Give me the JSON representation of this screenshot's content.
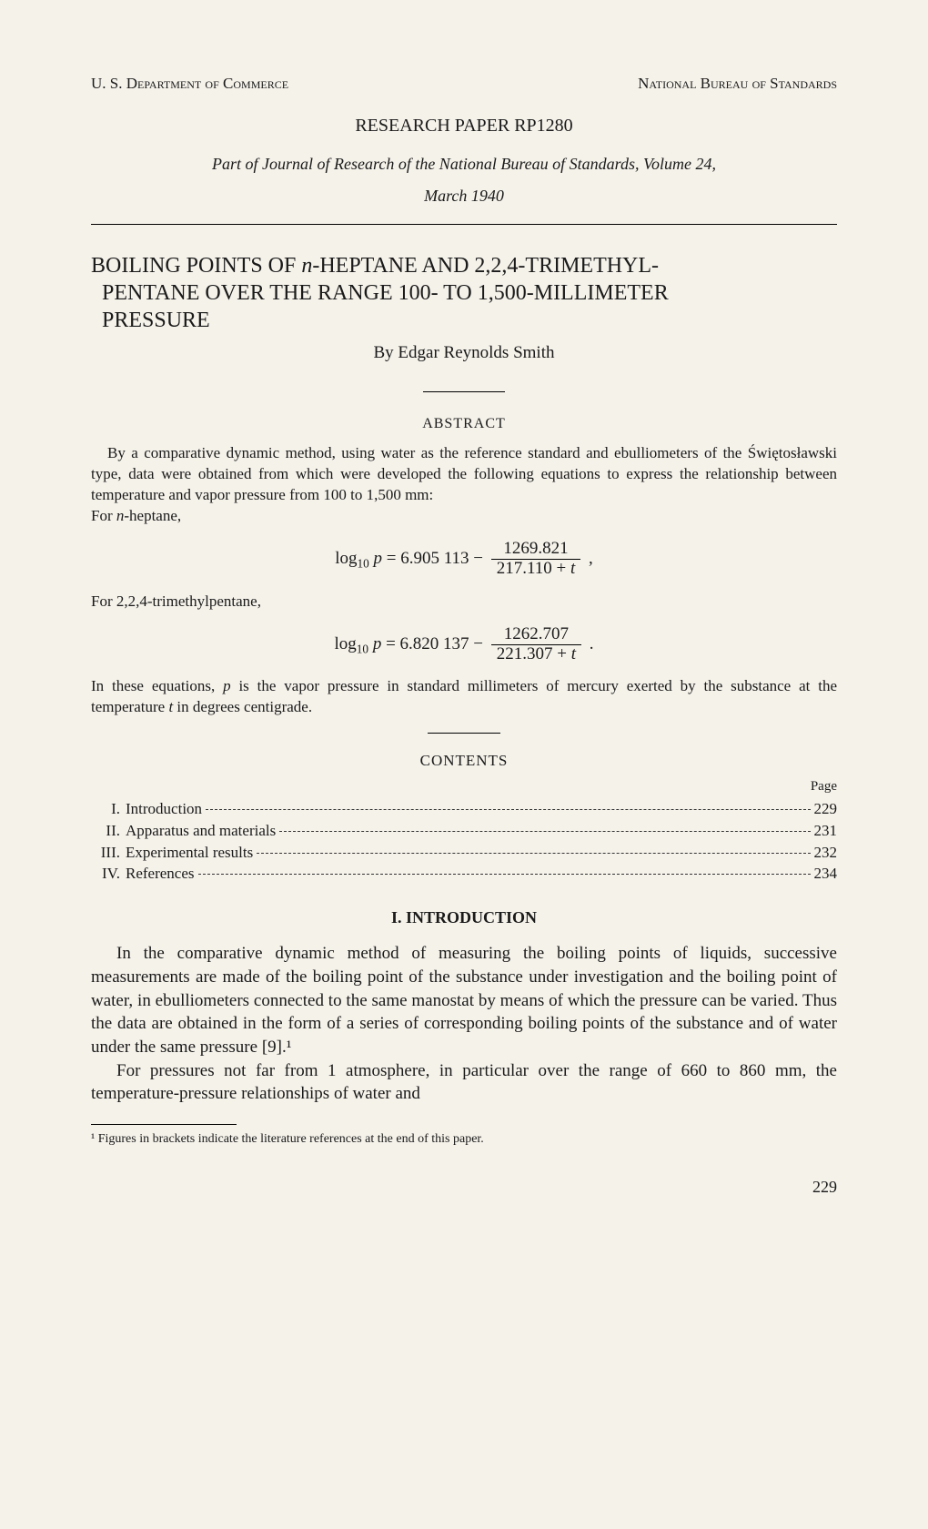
{
  "header": {
    "dept": "U. S. Department of Commerce",
    "bureau": "National Bureau of Standards"
  },
  "paper_id": "RESEARCH PAPER RP1280",
  "journal_line": "Part of Journal of Research of the National Bureau of Standards, Volume 24,",
  "date": "March 1940",
  "title": "BOILING POINTS OF n-HEPTANE AND 2,2,4-TRIMETHYL-PENTANE OVER THE RANGE 100- TO 1,500-MILLIMETER PRESSURE",
  "author": "By Edgar Reynolds Smith",
  "abstract": {
    "heading": "ABSTRACT",
    "para1": "By a comparative dynamic method, using water as the reference standard and ebulliometers of the Świętosławski type, data were obtained from which were developed the following equations to express the relationship between temperature and vapor pressure from 100 to 1,500 mm:",
    "line_heptane": "For n-heptane,",
    "eq1": {
      "prefix": "log₁₀ p = 6.905 113 −",
      "num": "1269.821",
      "den": "217.110 + t",
      "suffix": ","
    },
    "line_trimethyl": "For 2,2,4-trimethylpentane,",
    "eq2": {
      "prefix": "log₁₀ p = 6.820 137 −",
      "num": "1262.707",
      "den": "221.307 + t",
      "suffix": "."
    },
    "para2": "In these equations, p is the vapor pressure in standard millimeters of mercury exerted by the substance at the temperature t in degrees centigrade."
  },
  "contents": {
    "heading": "CONTENTS",
    "page_label": "Page",
    "items": [
      {
        "num": "I.",
        "label": "Introduction",
        "page": "229"
      },
      {
        "num": "II.",
        "label": "Apparatus and materials",
        "page": "231"
      },
      {
        "num": "III.",
        "label": "Experimental results",
        "page": "232"
      },
      {
        "num": "IV.",
        "label": "References",
        "page": "234"
      }
    ]
  },
  "section": {
    "heading": "I. INTRODUCTION",
    "p1": "In the comparative dynamic method of measuring the boiling points of liquids, successive measurements are made of the boiling point of the substance under investigation and the boiling point of water, in ebulliometers connected to the same manostat by means of which the pressure can be varied. Thus the data are obtained in the form of a series of corresponding boiling points of the substance and of water under the same pressure [9].¹",
    "p2": "For pressures not far from 1 atmosphere, in particular over the range of 660 to 860 mm, the temperature-pressure relationships of water and"
  },
  "footnote": "¹ Figures in brackets indicate the literature references at the end of this paper.",
  "page_number": "229",
  "style": {
    "background": "#f5f2ea",
    "text_color": "#1a1a1a",
    "body_font_size": 19,
    "abstract_font_size": 17,
    "title_font_size": 24,
    "header_font_size": 17
  }
}
